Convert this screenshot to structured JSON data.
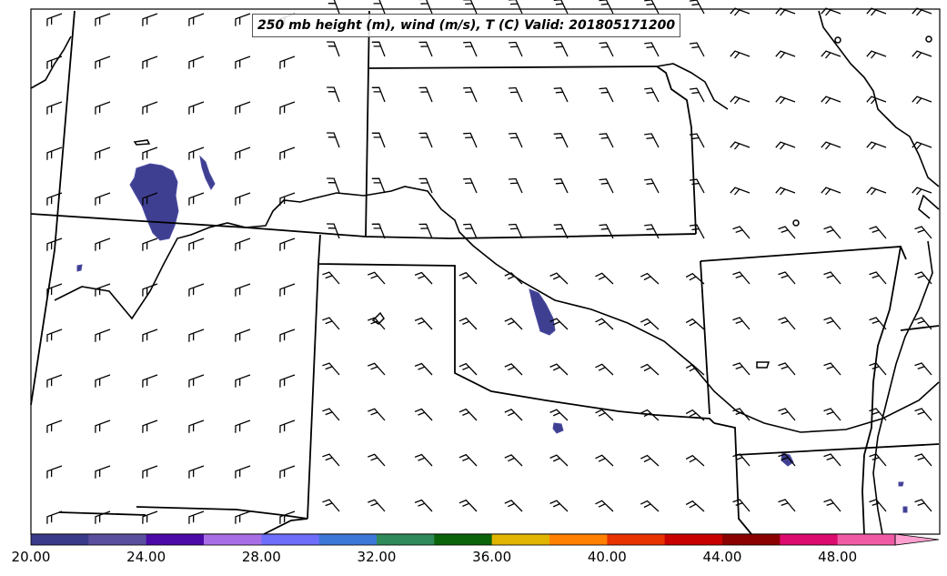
{
  "title": "250 mb height (m), wind (m/s), T (C) Valid: 201805171200",
  "colorbar": {
    "tick_labels": [
      "20.00",
      "24.00",
      "28.00",
      "32.00",
      "36.00",
      "40.00",
      "44.00",
      "48.00"
    ],
    "range": [
      20,
      50
    ],
    "extend": "max",
    "colors": [
      "#3a3a8a",
      "#5a4f9e",
      "#4b0aa8",
      "#a86ee6",
      "#6e6efa",
      "#3c78d8",
      "#2e8a5a",
      "#0a640a",
      "#e0b400",
      "#ff8000",
      "#e83200",
      "#c80000",
      "#8b0000",
      "#dc0a6e",
      "#f05aa5",
      "#ffa0d0"
    ]
  },
  "features": {
    "colors": {
      "shading": "#3f3f92",
      "borders": "#000000",
      "barbs": "#000000"
    },
    "wind_barbs": "mostly southwesterly to westerly flow over the southern plains",
    "shaded_areas": [
      "Utah/Colorado border blob",
      "central Kansas streak",
      "small patches in Texas and Arkansas"
    ]
  }
}
